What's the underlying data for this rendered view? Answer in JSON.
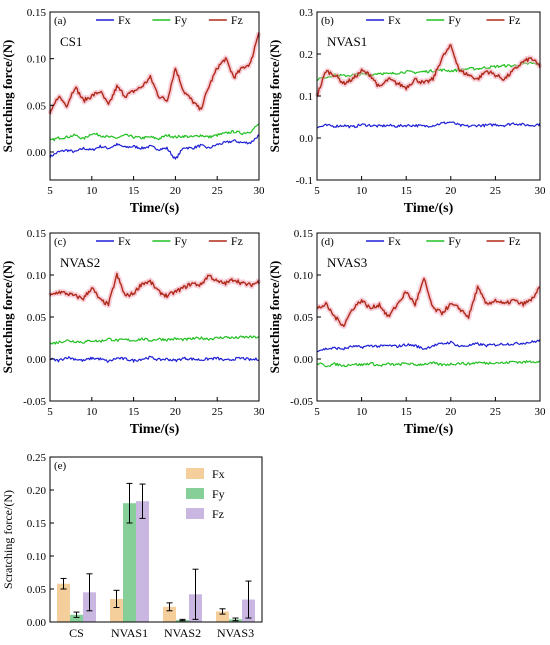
{
  "chart_data": [
    {
      "type": "line",
      "panel_letter": "(a)",
      "label": "CS1",
      "xlabel": "Time/(s)",
      "ylabel": "Scratching force/(N)",
      "xlim": [
        5,
        30
      ],
      "ylim": [
        -0.03,
        0.15
      ],
      "xticks": [
        "5",
        "10",
        "15",
        "20",
        "25",
        "30"
      ],
      "yticks": [
        "0.00",
        "0.05",
        "0.10",
        "0.15"
      ],
      "x": [
        5,
        6,
        7,
        8,
        9,
        10,
        11,
        12,
        13,
        14,
        15,
        16,
        17,
        18,
        19,
        20,
        21,
        22,
        23,
        24,
        25,
        26,
        27,
        28,
        29,
        30
      ],
      "series": [
        {
          "name": "Fx",
          "color": "#1f1fd6",
          "values": [
            -0.005,
            0.0,
            0.002,
            0.0,
            0.004,
            0.002,
            0.006,
            0.004,
            0.008,
            0.005,
            0.006,
            0.004,
            0.006,
            0.003,
            0.004,
            -0.008,
            0.005,
            0.004,
            0.007,
            0.004,
            0.008,
            0.01,
            0.012,
            0.01,
            0.01,
            0.018
          ]
        },
        {
          "name": "Fy",
          "color": "#22c022",
          "values": [
            0.012,
            0.015,
            0.016,
            0.018,
            0.014,
            0.02,
            0.018,
            0.016,
            0.015,
            0.018,
            0.016,
            0.015,
            0.016,
            0.014,
            0.018,
            0.016,
            0.017,
            0.016,
            0.018,
            0.016,
            0.018,
            0.02,
            0.022,
            0.02,
            0.022,
            0.03
          ]
        },
        {
          "name": "Fz",
          "color": "#b02a1a",
          "values": [
            0.04,
            0.06,
            0.05,
            0.07,
            0.055,
            0.06,
            0.065,
            0.05,
            0.07,
            0.06,
            0.065,
            0.07,
            0.08,
            0.06,
            0.055,
            0.09,
            0.065,
            0.055,
            0.045,
            0.07,
            0.09,
            0.1,
            0.08,
            0.09,
            0.095,
            0.13
          ]
        }
      ],
      "legend": "top"
    },
    {
      "type": "line",
      "panel_letter": "(b)",
      "label": "NVAS1",
      "xlabel": "Time/(s)",
      "ylabel": "Scratching force/(N)",
      "xlim": [
        5,
        30
      ],
      "ylim": [
        -0.1,
        0.3
      ],
      "xticks": [
        "5",
        "10",
        "15",
        "20",
        "25",
        "30"
      ],
      "yticks": [
        "-0.1",
        "0.0",
        "0.1",
        "0.2",
        "0.3"
      ],
      "x": [
        5,
        6,
        7,
        8,
        9,
        10,
        11,
        12,
        13,
        14,
        15,
        16,
        17,
        18,
        19,
        20,
        21,
        22,
        23,
        24,
        25,
        26,
        27,
        28,
        29,
        30
      ],
      "series": [
        {
          "name": "Fx",
          "color": "#1f1fd6",
          "values": [
            0.025,
            0.03,
            0.028,
            0.03,
            0.026,
            0.032,
            0.03,
            0.028,
            0.03,
            0.028,
            0.03,
            0.03,
            0.028,
            0.03,
            0.035,
            0.038,
            0.03,
            0.028,
            0.03,
            0.03,
            0.032,
            0.03,
            0.035,
            0.032,
            0.03,
            0.033
          ]
        },
        {
          "name": "Fy",
          "color": "#22c022",
          "values": [
            0.14,
            0.145,
            0.15,
            0.148,
            0.15,
            0.152,
            0.15,
            0.155,
            0.152,
            0.155,
            0.158,
            0.156,
            0.158,
            0.16,
            0.162,
            0.16,
            0.162,
            0.165,
            0.165,
            0.168,
            0.17,
            0.172,
            0.172,
            0.175,
            0.178,
            0.175
          ]
        },
        {
          "name": "Fz",
          "color": "#b02a1a",
          "values": [
            0.1,
            0.16,
            0.15,
            0.13,
            0.14,
            0.16,
            0.15,
            0.12,
            0.14,
            0.13,
            0.12,
            0.14,
            0.13,
            0.14,
            0.19,
            0.22,
            0.16,
            0.15,
            0.14,
            0.16,
            0.15,
            0.14,
            0.16,
            0.18,
            0.19,
            0.17
          ]
        }
      ],
      "legend": "top"
    },
    {
      "type": "line",
      "panel_letter": "(c)",
      "label": "NVAS2",
      "xlabel": "Time/(s)",
      "ylabel": "Scratching force/(N)",
      "xlim": [
        5,
        30
      ],
      "ylim": [
        -0.05,
        0.15
      ],
      "xticks": [
        "5",
        "10",
        "15",
        "20",
        "25",
        "30"
      ],
      "yticks": [
        "-0.05",
        "0.00",
        "0.05",
        "0.10",
        "0.15"
      ],
      "x": [
        5,
        6,
        7,
        8,
        9,
        10,
        11,
        12,
        13,
        14,
        15,
        16,
        17,
        18,
        19,
        20,
        21,
        22,
        23,
        24,
        25,
        26,
        27,
        28,
        29,
        30
      ],
      "series": [
        {
          "name": "Fx",
          "color": "#1f1fd6",
          "values": [
            0.0,
            -0.002,
            0.002,
            0.0,
            -0.002,
            0.001,
            0.0,
            -0.003,
            0.001,
            0.0,
            -0.002,
            0.0,
            0.002,
            -0.001,
            0.0,
            -0.002,
            0.001,
            0.0,
            -0.001,
            0.0,
            0.001,
            -0.002,
            0.0,
            0.001,
            -0.001,
            0.0
          ]
        },
        {
          "name": "Fy",
          "color": "#22c022",
          "values": [
            0.018,
            0.02,
            0.022,
            0.021,
            0.02,
            0.022,
            0.021,
            0.024,
            0.022,
            0.023,
            0.022,
            0.024,
            0.022,
            0.024,
            0.023,
            0.024,
            0.023,
            0.024,
            0.025,
            0.024,
            0.025,
            0.026,
            0.025,
            0.026,
            0.026,
            0.026
          ]
        },
        {
          "name": "Fz",
          "color": "#b02a1a",
          "values": [
            0.075,
            0.08,
            0.078,
            0.075,
            0.072,
            0.085,
            0.07,
            0.065,
            0.1,
            0.075,
            0.078,
            0.09,
            0.092,
            0.08,
            0.075,
            0.08,
            0.085,
            0.09,
            0.088,
            0.1,
            0.092,
            0.09,
            0.095,
            0.09,
            0.088,
            0.092
          ]
        }
      ],
      "legend": "top"
    },
    {
      "type": "line",
      "panel_letter": "(d)",
      "label": "NVAS3",
      "xlabel": "Time/(s)",
      "ylabel": "Scratching force/(N)",
      "xlim": [
        5,
        30
      ],
      "ylim": [
        -0.05,
        0.15
      ],
      "xticks": [
        "5",
        "10",
        "15",
        "20",
        "25",
        "30"
      ],
      "yticks": [
        "-0.05",
        "0.00",
        "0.05",
        "0.10",
        "0.15"
      ],
      "x": [
        5,
        6,
        7,
        8,
        9,
        10,
        11,
        12,
        13,
        14,
        15,
        16,
        17,
        18,
        19,
        20,
        21,
        22,
        23,
        24,
        25,
        26,
        27,
        28,
        29,
        30
      ],
      "series": [
        {
          "name": "Fx",
          "color": "#1f1fd6",
          "values": [
            0.01,
            0.012,
            0.013,
            0.012,
            0.015,
            0.014,
            0.016,
            0.015,
            0.016,
            0.015,
            0.017,
            0.016,
            0.012,
            0.016,
            0.018,
            0.02,
            0.015,
            0.016,
            0.018,
            0.016,
            0.017,
            0.018,
            0.018,
            0.019,
            0.02,
            0.022
          ]
        },
        {
          "name": "Fy",
          "color": "#22c022",
          "values": [
            -0.005,
            -0.008,
            -0.006,
            -0.008,
            -0.006,
            -0.007,
            -0.005,
            -0.008,
            -0.006,
            -0.007,
            -0.005,
            -0.007,
            -0.006,
            -0.005,
            -0.007,
            -0.006,
            -0.005,
            -0.006,
            -0.004,
            -0.005,
            -0.004,
            -0.005,
            -0.003,
            -0.004,
            -0.003,
            -0.003
          ]
        },
        {
          "name": "Fz",
          "color": "#b02a1a",
          "values": [
            0.06,
            0.065,
            0.05,
            0.04,
            0.06,
            0.07,
            0.06,
            0.065,
            0.05,
            0.065,
            0.08,
            0.065,
            0.095,
            0.06,
            0.055,
            0.065,
            0.06,
            0.05,
            0.085,
            0.065,
            0.07,
            0.065,
            0.07,
            0.065,
            0.07,
            0.085
          ]
        }
      ],
      "legend": "top"
    },
    {
      "type": "bar",
      "panel_letter": "(e)",
      "ylabel": "Scratching force/(N)",
      "categories": [
        "CS",
        "NVAS1",
        "NVAS2",
        "NVAS3"
      ],
      "ylim": [
        0,
        0.25
      ],
      "yticks": [
        "0.00",
        "0.05",
        "0.10",
        "0.15",
        "0.20",
        "0.25"
      ],
      "series": [
        {
          "name": "Fx",
          "color": "#f5cf9b",
          "values": [
            0.058,
            0.035,
            0.023,
            0.016
          ],
          "errors": [
            0.008,
            0.013,
            0.006,
            0.004
          ]
        },
        {
          "name": "Fy",
          "color": "#86cf99",
          "values": [
            0.011,
            0.18,
            0.003,
            0.004
          ],
          "errors": [
            0.004,
            0.03,
            0.001,
            0.002
          ]
        },
        {
          "name": "Fz",
          "color": "#c9b6e1",
          "values": [
            0.045,
            0.183,
            0.042,
            0.034
          ],
          "errors": [
            0.028,
            0.026,
            0.038,
            0.028
          ]
        }
      ],
      "legend": "top-right"
    }
  ]
}
